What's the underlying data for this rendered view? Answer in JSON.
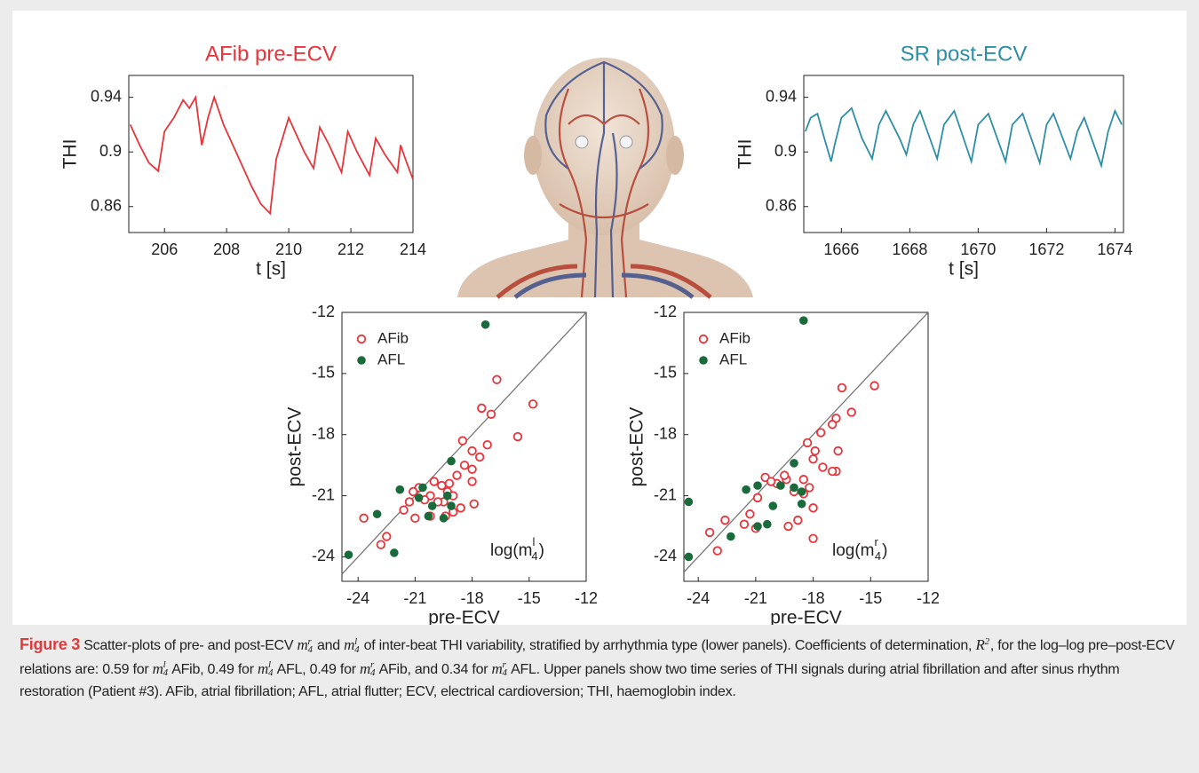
{
  "chart_data": [
    {
      "type": "line",
      "title": "AFib pre-ECV",
      "color": "#e8343a",
      "xlabel": "t [s]",
      "ylabel": "THI",
      "x": [
        204.9,
        205.2,
        205.5,
        205.8,
        206.0,
        206.3,
        206.6,
        206.8,
        207.0,
        207.2,
        207.4,
        207.6,
        207.9,
        208.2,
        208.5,
        208.8,
        209.1,
        209.4,
        209.6,
        209.8,
        210.0,
        210.2,
        210.5,
        210.8,
        211.0,
        211.3,
        211.7,
        211.9,
        212.2,
        212.6,
        212.8,
        213.1,
        213.5,
        213.6,
        213.8,
        214.0
      ],
      "values": [
        0.92,
        0.905,
        0.892,
        0.886,
        0.915,
        0.925,
        0.938,
        0.932,
        0.94,
        0.905,
        0.925,
        0.94,
        0.92,
        0.905,
        0.89,
        0.875,
        0.862,
        0.855,
        0.895,
        0.91,
        0.925,
        0.915,
        0.9,
        0.888,
        0.918,
        0.905,
        0.885,
        0.915,
        0.9,
        0.883,
        0.91,
        0.898,
        0.885,
        0.905,
        0.892,
        0.88
      ],
      "xlim": [
        204.85,
        214
      ],
      "ylim": [
        0.841,
        0.956
      ],
      "xticks": [
        206,
        208,
        210,
        212,
        214
      ],
      "yticks": [
        0.86,
        0.9,
        0.94
      ]
    },
    {
      "type": "line",
      "title": "SR post-ECV",
      "color": "#2e8ea6",
      "xlabel": "t [s]",
      "ylabel": "THI",
      "x": [
        1664.95,
        1665.1,
        1665.3,
        1665.5,
        1665.7,
        1665.8,
        1666.0,
        1666.3,
        1666.6,
        1666.9,
        1667.1,
        1667.3,
        1667.7,
        1667.9,
        1668.1,
        1668.3,
        1668.8,
        1669.0,
        1669.3,
        1669.8,
        1670.0,
        1670.3,
        1670.8,
        1671.0,
        1671.3,
        1671.8,
        1672.0,
        1672.2,
        1672.7,
        1672.9,
        1673.1,
        1673.6,
        1673.8,
        1674.0,
        1674.2
      ],
      "values": [
        0.915,
        0.925,
        0.928,
        0.91,
        0.893,
        0.905,
        0.925,
        0.932,
        0.91,
        0.895,
        0.92,
        0.93,
        0.91,
        0.898,
        0.92,
        0.93,
        0.895,
        0.92,
        0.93,
        0.893,
        0.92,
        0.928,
        0.893,
        0.92,
        0.928,
        0.892,
        0.92,
        0.928,
        0.895,
        0.915,
        0.925,
        0.89,
        0.915,
        0.93,
        0.92
      ],
      "xlim": [
        1664.9,
        1674.25
      ],
      "ylim": [
        0.841,
        0.956
      ],
      "xticks": [
        1666,
        1668,
        1670,
        1672,
        1674
      ],
      "yticks": [
        0.86,
        0.9,
        0.94
      ]
    },
    {
      "type": "scatter",
      "xlabel": "pre-ECV",
      "ylabel": "post-ECV",
      "legend": "upper left",
      "diagonal": true,
      "annotation": {
        "base": "log(m",
        "sup": "l",
        "sub": "4",
        "after": ")"
      },
      "series": [
        {
          "name": "AFib",
          "color": "#e8343a",
          "marker": "open",
          "x": [
            -14.8,
            -15.6,
            -16.7,
            -17.5,
            -17.0,
            -17.2,
            -18.5,
            -18.0,
            -17.6,
            -18.0,
            -18.4,
            -18.0,
            -18.8,
            -19.2,
            -19.6,
            -20.0,
            -19.3,
            -19.0,
            -19.5,
            -19.8,
            -20.2,
            -20.5,
            -20.8,
            -21.1,
            -21.3,
            -21.6,
            -21.0,
            -20.2,
            -19.4,
            -18.6,
            -17.9,
            -19.0,
            -22.5,
            -22.8,
            -23.7
          ],
          "values": [
            -16.5,
            -18.1,
            -15.3,
            -16.7,
            -17.0,
            -18.5,
            -18.3,
            -18.8,
            -19.1,
            -19.7,
            -19.5,
            -20.3,
            -20.0,
            -20.4,
            -20.5,
            -20.3,
            -20.8,
            -21.0,
            -21.3,
            -21.3,
            -21.0,
            -21.2,
            -20.6,
            -20.8,
            -21.3,
            -21.7,
            -22.1,
            -22.0,
            -22.0,
            -21.6,
            -21.4,
            -21.8,
            -23.0,
            -23.4,
            -22.1
          ]
        },
        {
          "name": "AFL",
          "color": "#1a6b3c",
          "marker": "filled",
          "x": [
            -17.3,
            -19.1,
            -20.6,
            -21.8,
            -20.8,
            -19.3,
            -20.1,
            -19.1,
            -20.3,
            -19.5,
            -23.0,
            -24.5,
            -22.1
          ],
          "values": [
            -12.6,
            -19.3,
            -20.6,
            -20.7,
            -21.1,
            -21.0,
            -21.5,
            -21.5,
            -22.0,
            -22.1,
            -21.9,
            -23.9,
            -23.8
          ]
        }
      ],
      "xlim": [
        -24.85,
        -12
      ],
      "ylim": [
        -25.2,
        -12
      ],
      "xticks": [
        -24,
        -21,
        -18,
        -15,
        -12
      ],
      "yticks": [
        -24,
        -21,
        -18,
        -15,
        -12
      ]
    },
    {
      "type": "scatter",
      "xlabel": "pre-ECV",
      "ylabel": "post-ECV",
      "legend": "upper left",
      "diagonal": true,
      "annotation": {
        "base": "log(m",
        "sup": "r",
        "sub": "4",
        "after": ")"
      },
      "series": [
        {
          "name": "AFib",
          "color": "#e8343a",
          "marker": "open",
          "x": [
            -14.8,
            -16.0,
            -16.5,
            -16.8,
            -17.0,
            -17.6,
            -18.3,
            -17.9,
            -18.0,
            -17.5,
            -16.7,
            -16.8,
            -17.0,
            -18.5,
            -18.2,
            -19.0,
            -19.4,
            -19.9,
            -20.5,
            -20.2,
            -19.5,
            -18.5,
            -18.0,
            -18.8,
            -19.3,
            -20.9,
            -21.3,
            -21.0,
            -21.6,
            -22.6,
            -23.4,
            -23.0,
            -18.0
          ],
          "values": [
            -15.6,
            -16.9,
            -15.7,
            -17.2,
            -17.5,
            -17.9,
            -18.4,
            -18.8,
            -19.2,
            -19.6,
            -18.8,
            -19.8,
            -19.8,
            -20.2,
            -20.6,
            -20.8,
            -20.2,
            -20.4,
            -20.1,
            -20.3,
            -20.0,
            -20.9,
            -21.6,
            -22.2,
            -22.5,
            -21.1,
            -21.9,
            -22.6,
            -22.4,
            -22.2,
            -22.8,
            -23.7,
            -23.1
          ]
        },
        {
          "name": "AFL",
          "color": "#1a6b3c",
          "marker": "filled",
          "x": [
            -18.5,
            -19.0,
            -21.5,
            -20.9,
            -19.7,
            -19.0,
            -20.1,
            -18.6,
            -20.9,
            -20.4,
            -22.3,
            -24.5,
            -24.5,
            -18.6
          ],
          "values": [
            -12.4,
            -19.4,
            -20.7,
            -20.5,
            -20.5,
            -20.6,
            -21.5,
            -21.4,
            -22.5,
            -22.4,
            -23.0,
            -21.3,
            -24.0,
            -20.8
          ]
        }
      ],
      "xlim": [
        -24.75,
        -12
      ],
      "ylim": [
        -25.2,
        -12
      ],
      "xticks": [
        -24,
        -21,
        -18,
        -15,
        -12
      ],
      "yticks": [
        -24,
        -21,
        -18,
        -15,
        -12
      ]
    }
  ],
  "caption": {
    "label": "Figure 3",
    "parts": [
      " Scatter-plots of pre- and post-ECV ",
      {
        "base": "m",
        "sup": "r",
        "sub": "4"
      },
      " and ",
      {
        "base": "m",
        "sup": "l",
        "sub": "4"
      },
      " of inter-beat THI variability, stratified by arrhythmia type (lower panels). Coefficients of determination, ",
      {
        "base": "R",
        "sup": "2"
      },
      ", for the log–log pre–post-ECV relations are: 0.59 for ",
      {
        "base": "m",
        "sup": "l",
        "sub": "4"
      },
      " AFib, 0.49 for ",
      {
        "base": "m",
        "sup": "l",
        "sub": "4"
      },
      " AFL, 0.49 for ",
      {
        "base": "m",
        "sup": "r",
        "sub": "4"
      },
      " AFib, and 0.34 for ",
      {
        "base": "m",
        "sup": "r",
        "sub": "4"
      },
      " AFL. Upper panels show two time series of THI signals during atrial fibrillation and after sinus rhythm restoration (Patient #3). AFib, atrial fibrillation; AFL, atrial flutter; ECV, electrical cardioversion; THI, haemoglobin index."
    ]
  }
}
